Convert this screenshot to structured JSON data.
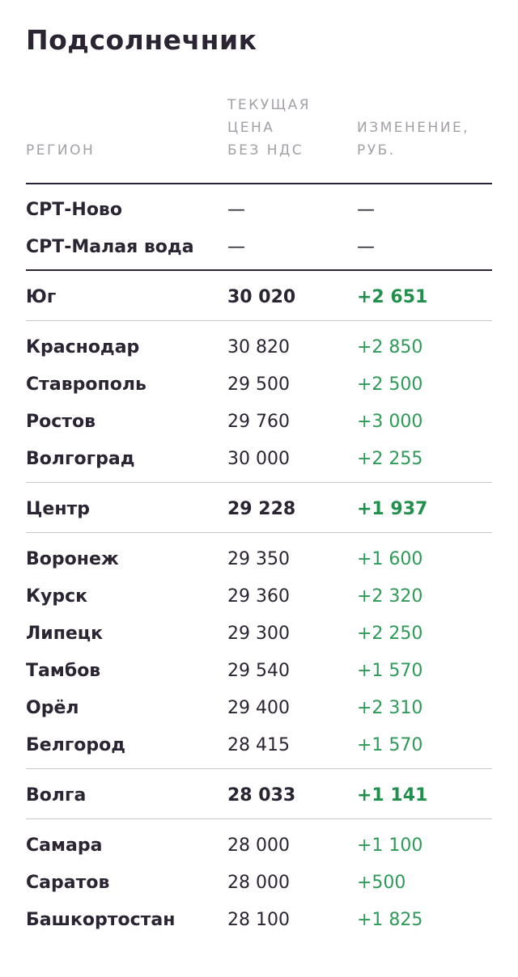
{
  "title": "Подсолнечник",
  "headers": {
    "region": "РЕГИОН",
    "price": "ТЕКУЩАЯ\nЦЕНА\nБЕЗ НДС",
    "change": "ИЗМЕНЕНИЕ,\nРУБ."
  },
  "colors": {
    "text": "#2b2433",
    "header": "#a39fa6",
    "positive": "#2e9a57",
    "rule": "#c8c6c9"
  },
  "groups": [
    {
      "rows": [
        {
          "region": "СРТ-Ново",
          "price": "—",
          "change": "—"
        },
        {
          "region": "СРТ-Малая вода",
          "price": "—",
          "change": "—"
        }
      ]
    },
    {
      "total": {
        "region": "Юг",
        "price": "30 020",
        "change": "+2 651"
      },
      "rows": [
        {
          "region": "Краснодар",
          "price": "30 820",
          "change": "+2 850"
        },
        {
          "region": "Ставрополь",
          "price": "29 500",
          "change": "+2 500"
        },
        {
          "region": "Ростов",
          "price": "29 760",
          "change": "+3 000"
        },
        {
          "region": "Волгоград",
          "price": "30 000",
          "change": "+2 255"
        }
      ]
    },
    {
      "total": {
        "region": "Центр",
        "price": "29 228",
        "change": "+1 937"
      },
      "rows": [
        {
          "region": "Воронеж",
          "price": "29 350",
          "change": "+1 600"
        },
        {
          "region": "Курск",
          "price": "29 360",
          "change": "+2 320"
        },
        {
          "region": "Липецк",
          "price": "29 300",
          "change": "+2 250"
        },
        {
          "region": "Тамбов",
          "price": "29 540",
          "change": "+1 570"
        },
        {
          "region": "Орёл",
          "price": "29 400",
          "change": "+2 310"
        },
        {
          "region": "Белгород",
          "price": "28 415",
          "change": "+1 570"
        }
      ]
    },
    {
      "total": {
        "region": "Волга",
        "price": "28 033",
        "change": "+1 141"
      },
      "rows": [
        {
          "region": "Самара",
          "price": "28 000",
          "change": "+1 100"
        },
        {
          "region": "Саратов",
          "price": "28 000",
          "change": "+500"
        },
        {
          "region": "Башкортостан",
          "price": "28 100",
          "change": "+1 825"
        }
      ]
    }
  ]
}
